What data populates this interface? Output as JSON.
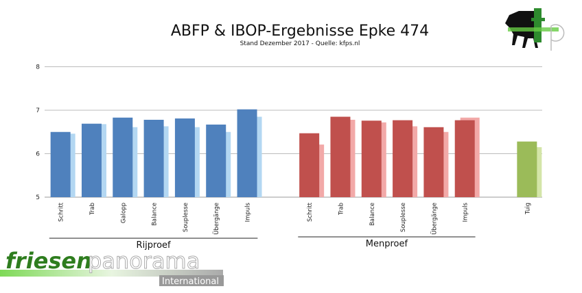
{
  "chart_data": {
    "type": "bar",
    "title": "ABFP & IBOP-Ergebnisse Epke 474",
    "subtitle": "Stand Dezember 2017 - Quelle: kfps.nl",
    "ylim": [
      5,
      8
    ],
    "yticks": [
      "5",
      "6",
      "7",
      "8"
    ],
    "grid": true,
    "groups": [
      {
        "name": "Rijproef",
        "colors": {
          "main": "#4f81bd",
          "secondary": "#b3d7f2"
        },
        "categories": [
          "Schritt",
          "Trab",
          "Galopp",
          "Balance",
          "Souplesse",
          "Übergänge",
          "Impuls"
        ],
        "values": [
          6.5,
          6.69,
          6.83,
          6.78,
          6.81,
          6.67,
          7.02
        ],
        "secondary_values": [
          6.46,
          6.68,
          6.61,
          6.63,
          6.61,
          6.5,
          6.85
        ]
      },
      {
        "name": "Menproef",
        "colors": {
          "main": "#c0504d",
          "secondary": "#f2a9a8"
        },
        "categories": [
          "Schritt",
          "Trab",
          "Balance",
          "Souplesse",
          "Übergänge",
          "Impuls"
        ],
        "values": [
          6.47,
          6.85,
          6.76,
          6.77,
          6.61,
          6.77
        ],
        "secondary_values": [
          6.21,
          6.78,
          6.72,
          6.63,
          6.5,
          6.83
        ]
      },
      {
        "name": "",
        "colors": {
          "main": "#9bbb59",
          "secondary": "#d3e5a8"
        },
        "categories": [
          "Tuig"
        ],
        "values": [
          6.28
        ],
        "secondary_values": [
          6.15
        ]
      }
    ]
  },
  "logos": {
    "top_right": "fp",
    "bottom_left": {
      "part1": "friesen",
      "part2": "panorama",
      "sub": "International"
    }
  }
}
